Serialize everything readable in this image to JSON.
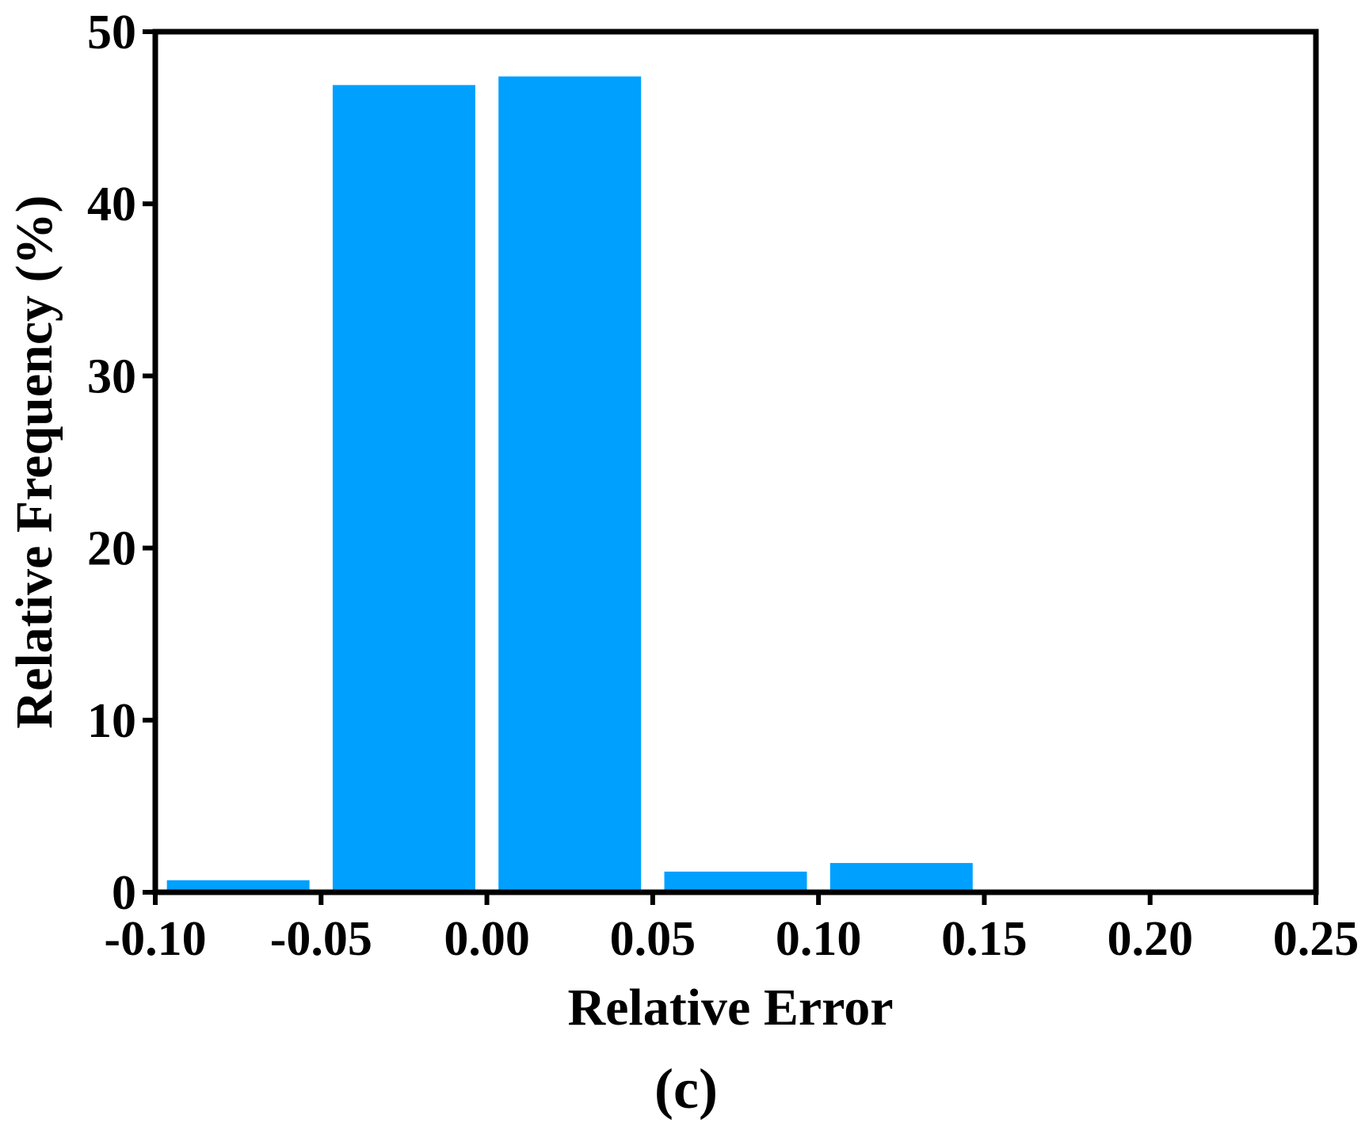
{
  "chart_data": {
    "type": "bar",
    "subtype": "histogram",
    "bins": [
      {
        "start": -0.1,
        "end": -0.05,
        "value": 0.7
      },
      {
        "start": -0.05,
        "end": 0.0,
        "value": 46.9
      },
      {
        "start": 0.0,
        "end": 0.05,
        "value": 47.4
      },
      {
        "start": 0.05,
        "end": 0.1,
        "value": 1.2
      },
      {
        "start": 0.1,
        "end": 0.15,
        "value": 1.7
      },
      {
        "start": 0.15,
        "end": 0.2,
        "value": 0.1
      },
      {
        "start": 0.2,
        "end": 0.25,
        "value": 0.1
      }
    ],
    "xlabel": "Relative Error",
    "ylabel": "Relative Frequency (%)",
    "xlim": [
      -0.1,
      0.25
    ],
    "ylim": [
      0,
      50
    ],
    "xticks": [
      "-0.10",
      "-0.05",
      "0.00",
      "0.05",
      "0.10",
      "0.15",
      "0.20",
      "0.25"
    ],
    "yticks": [
      "0",
      "10",
      "20",
      "30",
      "40",
      "50"
    ],
    "grid": false,
    "bar_color": "#00a0ff",
    "panel_label": "(c)"
  }
}
